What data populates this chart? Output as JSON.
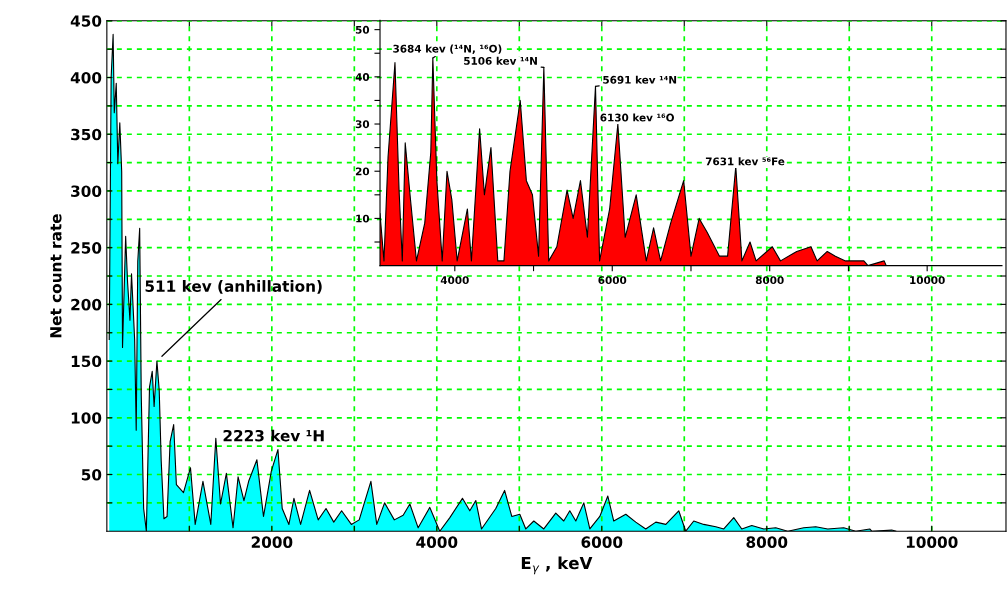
{
  "chart_data": [
    {
      "type": "area",
      "xlabel": "E$_{γ}$ , keV",
      "ylabel": "Net count rate",
      "color": "#00ffff",
      "x": [
        29,
        52,
        76,
        90,
        114,
        133,
        157,
        180,
        190,
        228,
        251,
        280,
        299,
        337,
        356,
        375,
        398,
        417,
        446,
        479,
        517,
        550,
        573,
        607,
        635,
        659,
        692,
        730,
        767,
        810,
        843,
        929,
        1014,
        1071,
        1165,
        1260,
        1321,
        1378,
        1449,
        1530,
        1591,
        1662,
        1719,
        1819,
        1899,
        1994,
        2074,
        2126,
        2207,
        2268,
        2349,
        2458,
        2562,
        2657,
        2751,
        2846,
        2964,
        3059,
        3201,
        3272,
        3367,
        3485,
        3592,
        3673,
        3774,
        3915,
        4036,
        4158,
        4311,
        4400,
        4473,
        4542,
        4715,
        4822,
        4909,
        5006,
        5079,
        5176,
        5297,
        5442,
        5539,
        5612,
        5685,
        5782,
        5855,
        5976,
        6073,
        6145,
        6291,
        6412,
        6533,
        6655,
        6776,
        6933,
        7018,
        7115,
        7236,
        7382,
        7479,
        7600,
        7697,
        7818,
        7964,
        8109,
        8255,
        8448,
        8594,
        8739,
        8933,
        9079,
        9248,
        9273,
        9515,
        9564
      ],
      "values": [
        169,
        400,
        438,
        369,
        395,
        324,
        360,
        317,
        162,
        260,
        220,
        186,
        227,
        169,
        89,
        238,
        267,
        120,
        20,
        0,
        127,
        141,
        110,
        150,
        124,
        62,
        11,
        13,
        79,
        94,
        41,
        34,
        56,
        6,
        44,
        6,
        82,
        24,
        51,
        3,
        48,
        27,
        44,
        63,
        13,
        53,
        72,
        20,
        6,
        29,
        6,
        36,
        10,
        20,
        8,
        18,
        6,
        10,
        44,
        6,
        25,
        10,
        14,
        24,
        3,
        21,
        0,
        12,
        29,
        18,
        27,
        2,
        20,
        36,
        13,
        15,
        2,
        9,
        2,
        16,
        9,
        18,
        9,
        25,
        2,
        13,
        31,
        9,
        15,
        8,
        2,
        8,
        6,
        18,
        0,
        9,
        6,
        4,
        2,
        12,
        2,
        5,
        2,
        3,
        0,
        3,
        4,
        2,
        3,
        0,
        2,
        0,
        1,
        0
      ],
      "xlim": [
        0,
        10900
      ],
      "xticks": [
        {
          "value": 1000,
          "label": null
        },
        2000,
        {
          "value": 3000,
          "label": null
        },
        4000,
        {
          "value": 5000,
          "label": null
        },
        6000,
        {
          "value": 7000,
          "label": null
        },
        8000,
        {
          "value": 9000,
          "label": null
        },
        10000
      ],
      "ylim": [
        0,
        450
      ],
      "yticks": [
        {
          "value": 25,
          "label": null
        },
        50,
        {
          "value": 75,
          "label": null
        },
        100,
        {
          "value": 125,
          "label": null
        },
        150,
        {
          "value": 175,
          "label": null
        },
        200,
        {
          "value": 225,
          "label": null
        },
        250,
        {
          "value": 275,
          "label": null
        },
        300,
        {
          "value": 325,
          "label": null
        },
        350,
        {
          "value": 375,
          "label": null
        },
        400,
        {
          "value": 425,
          "label": null
        },
        450
      ],
      "grid": true,
      "annotations": [
        {
          "text": "511 kev (anhillation)",
          "x": 607,
          "y": 150
        },
        {
          "text": "2223 kev ¹H",
          "x": 2074,
          "y": 72
        }
      ]
    },
    {
      "type": "area",
      "color": "#ff0000",
      "x": [
        3050,
        3100,
        3152,
        3240,
        3292,
        3333,
        3370,
        3437,
        3513,
        3618,
        3695,
        3721,
        3772,
        3840,
        3901,
        3962,
        4030,
        4160,
        4211,
        4315,
        4376,
        4459,
        4546,
        4624,
        4701,
        4831,
        4909,
        4986,
        5064,
        5131,
        5193,
        5296,
        5426,
        5503,
        5596,
        5684,
        5787,
        5839,
        5967,
        6071,
        6164,
        6304,
        6432,
        6525,
        6614,
        6742,
        6907,
        7000,
        7104,
        7207,
        7362,
        7465,
        7569,
        7647,
        7750,
        7827,
        8033,
        8137,
        8343,
        8524,
        8602,
        8731,
        8834,
        8963,
        9196,
        9248,
        9454,
        9480
      ],
      "values": [
        11,
        1,
        23,
        43,
        16,
        1,
        26,
        14,
        1,
        9,
        24,
        44,
        18,
        1,
        20,
        14,
        1,
        12,
        1,
        29,
        15,
        25,
        1,
        1,
        20,
        35,
        18,
        15,
        2,
        42,
        1,
        4,
        16,
        10,
        18,
        6,
        38,
        1,
        12,
        30,
        6,
        15,
        1,
        8,
        1,
        9,
        18,
        2,
        10,
        7,
        2,
        2,
        21,
        1,
        5,
        1,
        4,
        1,
        3,
        4,
        1,
        3,
        2,
        1,
        1,
        0,
        1,
        0
      ],
      "xlim": [
        3050,
        10950
      ],
      "xticks": [
        4000,
        {
          "value": 5000,
          "label": null
        },
        6000,
        {
          "value": 7000,
          "label": null
        },
        8000,
        {
          "value": 9000,
          "label": null
        },
        10000
      ],
      "ylim": [
        0,
        52
      ],
      "yticks": [
        {
          "value": 5,
          "label": null
        },
        10,
        {
          "value": 15,
          "label": null
        },
        20,
        {
          "value": 25,
          "label": null
        },
        30,
        {
          "value": 35,
          "label": null
        },
        40,
        {
          "value": 45,
          "label": null
        },
        50
      ],
      "annotations": [
        {
          "text": "3684 kev (¹⁴N, ¹⁶O)",
          "x": 3721,
          "y": 44
        },
        {
          "text": "5106 kev ¹⁴N",
          "x": 5131,
          "y": 42
        },
        {
          "text": "5691 kev ¹⁴N",
          "x": 5787,
          "y": 38
        },
        {
          "text": "6130 kev ¹⁶O",
          "x": 6071,
          "y": 30
        },
        {
          "text": "7631 kev ⁵⁶Fe",
          "x": 7569,
          "y": 21
        }
      ]
    }
  ]
}
